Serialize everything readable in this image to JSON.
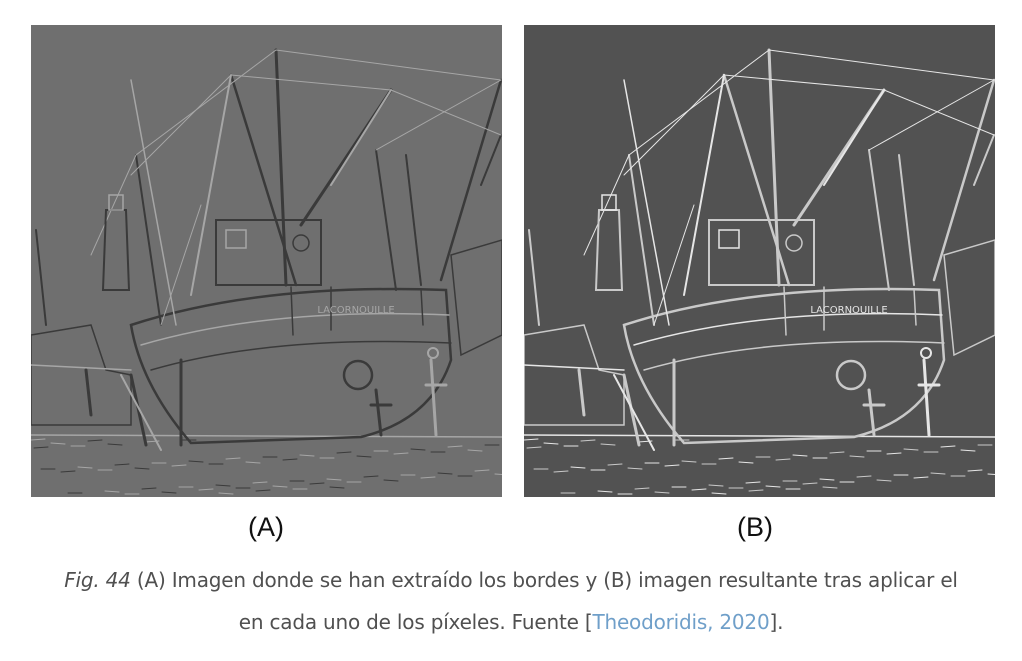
{
  "panels": [
    {
      "label": "(A)",
      "icon": "boat-edges-image",
      "background": "#6f6f6f",
      "stroke": "#3a3a3a",
      "highlight": "#a6a6a6",
      "boat_name": "LACORNOUILLE"
    },
    {
      "label": "(B)",
      "icon": "boat-edges-image",
      "background": "#525252",
      "stroke": "#c9c9c9",
      "highlight": "#e6e6e6",
      "boat_name": "LACORNOUILLE"
    }
  ],
  "caption": {
    "fig": "Fig. 44",
    "text_line1": " (A) Imagen donde se han extraído los bordes y (B) imagen resultante tras aplicar el",
    "text_line2_pre": "en cada uno de los píxeles. Fuente [",
    "reference": "Theodoridis, 2020",
    "text_line2_post": "].",
    "reference_color": "#6f9fc9"
  }
}
